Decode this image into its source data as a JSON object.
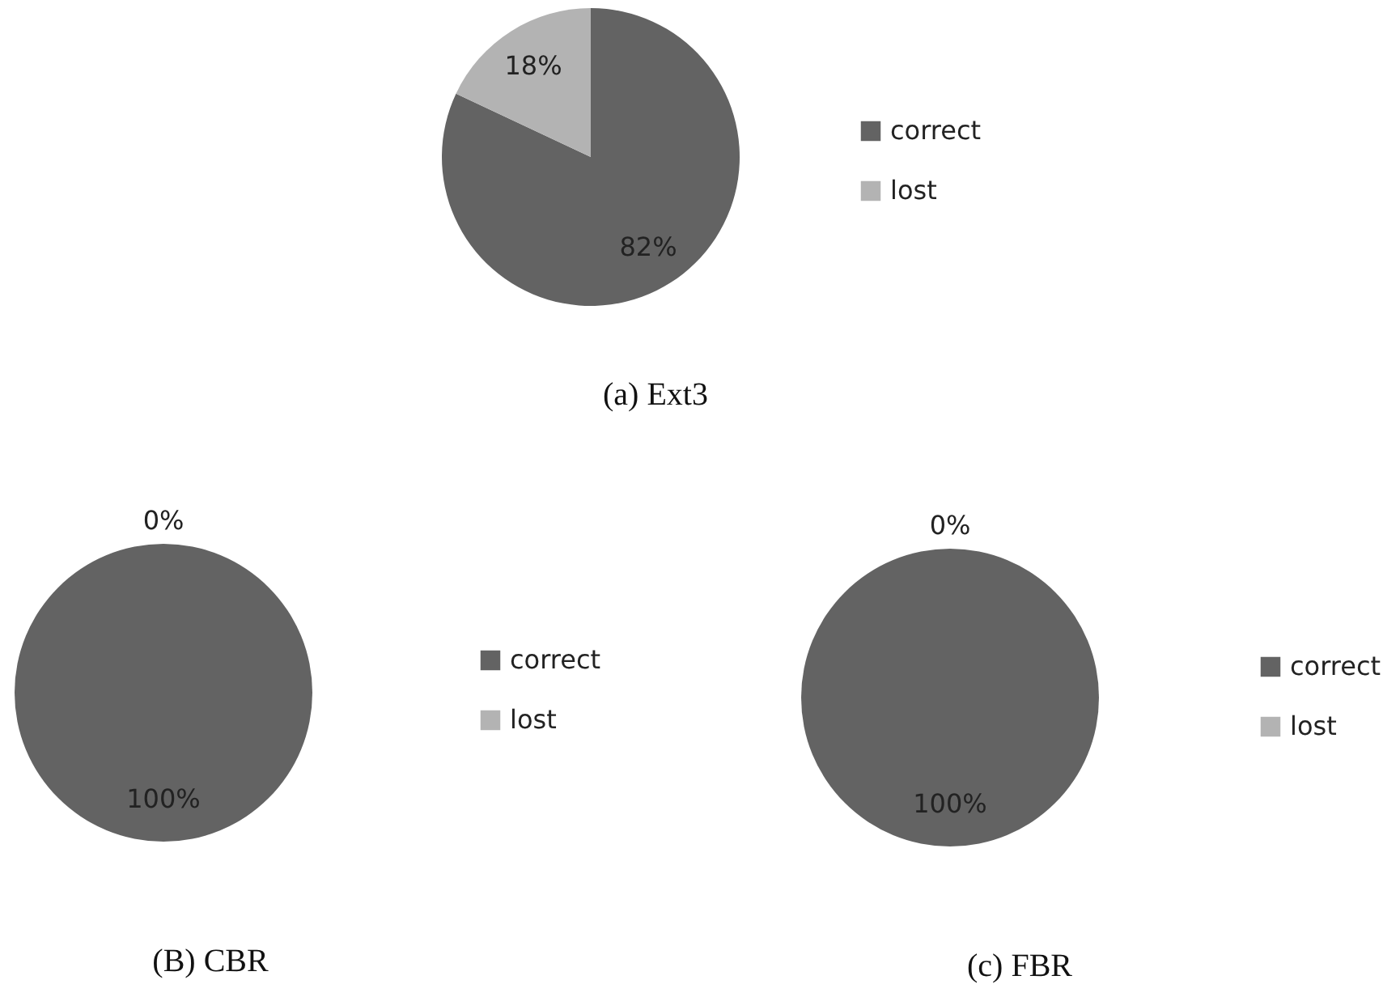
{
  "chart_data": [
    {
      "type": "pie",
      "title": "(a) Ext3",
      "categories": [
        "correct",
        "lost"
      ],
      "values": [
        82,
        18
      ],
      "colors": [
        "#636363",
        "#b3b3b3"
      ],
      "value_labels": [
        "82%",
        "18%"
      ],
      "legend": "right"
    },
    {
      "type": "pie",
      "title": "(B) CBR",
      "categories": [
        "correct",
        "lost"
      ],
      "values": [
        100,
        0
      ],
      "colors": [
        "#636363",
        "#b3b3b3"
      ],
      "value_labels": [
        "100%",
        "0%"
      ],
      "legend": "right"
    },
    {
      "type": "pie",
      "title": "(c) FBR",
      "categories": [
        "correct",
        "lost"
      ],
      "values": [
        100,
        0
      ],
      "colors": [
        "#636363",
        "#b3b3b3"
      ],
      "value_labels": [
        "100%",
        "0%"
      ],
      "legend": "right"
    }
  ]
}
